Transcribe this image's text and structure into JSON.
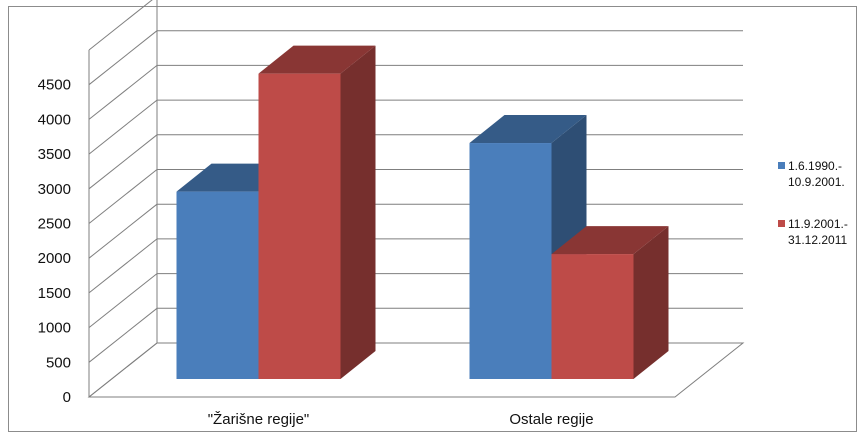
{
  "chart_data": {
    "type": "bar",
    "categories": [
      "\"Žarišne regije\"",
      "Ostale regije"
    ],
    "series": [
      {
        "name": "1.6.1990.- 10.9.2001.",
        "legend_lines": [
          "1.6.1990.-",
          "10.9.2001."
        ],
        "color": "#4a7ebb",
        "values": [
          2700,
          3400
        ]
      },
      {
        "name": "11.9.2001.- 31.12.2011",
        "legend_lines": [
          "11.9.2001.-",
          "31.12.2011"
        ],
        "color": "#be4b48",
        "values": [
          4400,
          1800
        ]
      }
    ],
    "yticks": [
      "0",
      "500",
      "1000",
      "1500",
      "2000",
      "2500",
      "3000",
      "3500",
      "4000",
      "4500"
    ],
    "ylim": [
      0,
      5000
    ],
    "grid": true,
    "legend_position": "right",
    "projection": "3d"
  }
}
